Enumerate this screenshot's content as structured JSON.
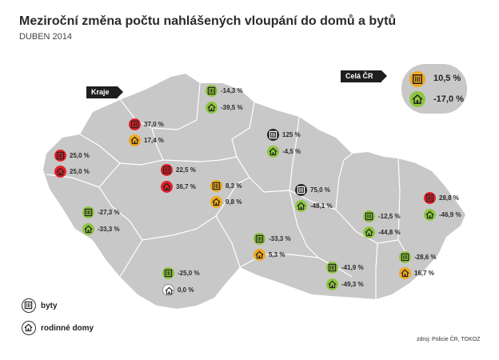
{
  "title": "Meziroční změna počtu nahlášených vloupání do domů a bytů",
  "subtitle": "DUBEN 2014",
  "kraje_label": "Kraje",
  "cr": {
    "label": "Celá ČR",
    "byty": "10,5 %",
    "domy": "-17,0 %",
    "byty_color": "#f0a91e",
    "domy_color": "#8ec63f"
  },
  "legend": {
    "byty": "byty",
    "domy": "rodinné domy"
  },
  "source": "zdroj: Policie ČR, TOKOZ",
  "colors": {
    "red": "#e2202a",
    "orange": "#f0a91e",
    "green": "#8ec63f",
    "black": "#222222",
    "white": "#ffffff",
    "map": "#c8c8c8"
  },
  "regions": [
    {
      "byty": "-14,3 %",
      "byty_color": "#8ec63f",
      "domy": "-39,5 %",
      "domy_color": "#8ec63f"
    },
    {
      "byty": "37,0 %",
      "byty_color": "#e2202a",
      "domy": "17,4 %",
      "domy_color": "#f0a91e"
    },
    {
      "byty": "25,0 %",
      "byty_color": "#e2202a",
      "domy": "25,0 %",
      "domy_color": "#e2202a"
    },
    {
      "byty": "125 %",
      "byty_color": "#222222",
      "domy": "-4,5 %",
      "domy_color": "#8ec63f"
    },
    {
      "byty": "22,5 %",
      "byty_color": "#e2202a",
      "domy": "36,7 %",
      "domy_color": "#e2202a"
    },
    {
      "byty": "8,3 %",
      "byty_color": "#f0a91e",
      "domy": "0,8 %",
      "domy_color": "#f0a91e"
    },
    {
      "byty": "75,0 %",
      "byty_color": "#222222",
      "domy": "-48,1 %",
      "domy_color": "#8ec63f"
    },
    {
      "byty": "28,8 %",
      "byty_color": "#e2202a",
      "domy": "-46,9 %",
      "domy_color": "#8ec63f"
    },
    {
      "byty": "-27,3 %",
      "byty_color": "#8ec63f",
      "domy": "-33,3 %",
      "domy_color": "#8ec63f"
    },
    {
      "byty": "-12,5 %",
      "byty_color": "#8ec63f",
      "domy": "-44,8 %",
      "domy_color": "#8ec63f"
    },
    {
      "byty": "-33,3 %",
      "byty_color": "#8ec63f",
      "domy": "5,3 %",
      "domy_color": "#f0a91e"
    },
    {
      "byty": "-28,6 %",
      "byty_color": "#8ec63f",
      "domy": "16,7 %",
      "domy_color": "#f0a91e"
    },
    {
      "byty": "-41,9 %",
      "byty_color": "#8ec63f",
      "domy": "-49,3 %",
      "domy_color": "#8ec63f"
    },
    {
      "byty": "-25,0 %",
      "byty_color": "#8ec63f",
      "domy": "0,0 %",
      "domy_color": "#ffffff"
    }
  ]
}
